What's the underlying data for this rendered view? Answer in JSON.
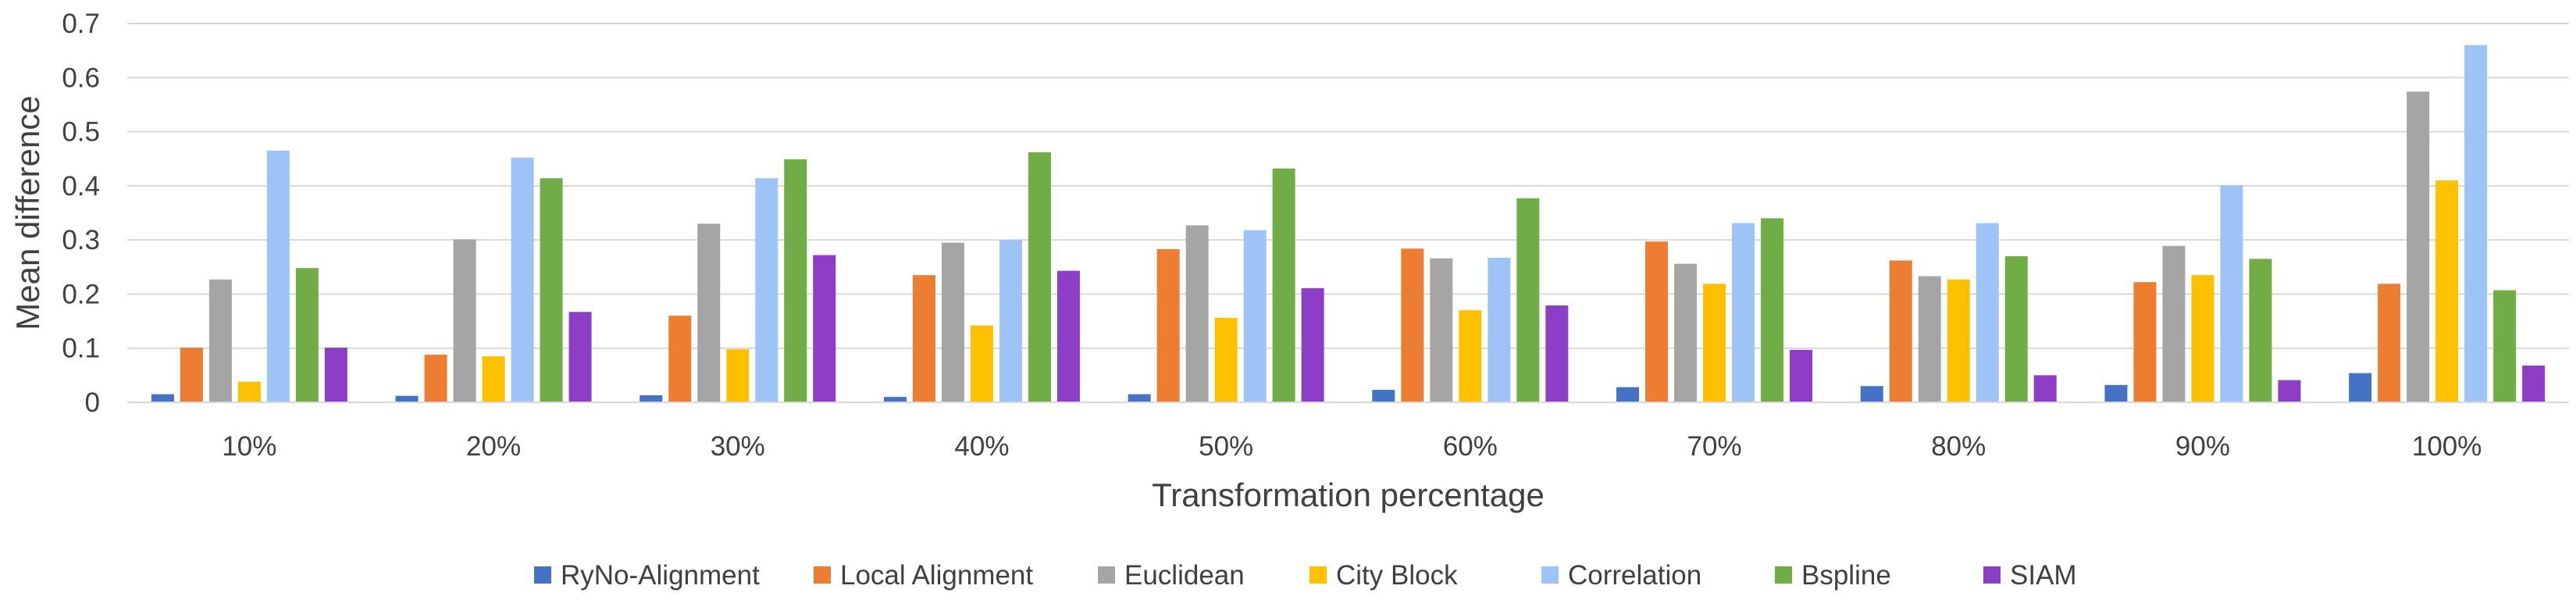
{
  "chart_data": {
    "type": "bar",
    "xlabel": "Transformation percentage",
    "ylabel": "Mean difference",
    "ylim": [
      0,
      0.7
    ],
    "yticks": [
      "0",
      "0.1",
      "0.2",
      "0.3",
      "0.4",
      "0.5",
      "0.6",
      "0.7"
    ],
    "grid": true,
    "legend_position": "bottom",
    "categories": [
      "10%",
      "20%",
      "30%",
      "40%",
      "50%",
      "60%",
      "70%",
      "80%",
      "90%",
      "100%"
    ],
    "series": [
      {
        "name": "RyNo-Alignment",
        "color": "#4472C4",
        "values": [
          0.015,
          0.012,
          0.013,
          0.01,
          0.015,
          0.023,
          0.028,
          0.03,
          0.032,
          0.054
        ]
      },
      {
        "name": "Local Alignment",
        "color": "#ED7D31",
        "values": [
          0.101,
          0.088,
          0.16,
          0.235,
          0.283,
          0.284,
          0.297,
          0.262,
          0.222,
          0.219
        ]
      },
      {
        "name": "Euclidean",
        "color": "#A5A5A5",
        "values": [
          0.227,
          0.301,
          0.33,
          0.295,
          0.327,
          0.266,
          0.256,
          0.233,
          0.289,
          0.574
        ]
      },
      {
        "name": "City Block",
        "color": "#FFC000",
        "values": [
          0.038,
          0.085,
          0.098,
          0.142,
          0.156,
          0.17,
          0.219,
          0.227,
          0.235,
          0.41
        ]
      },
      {
        "name": "Correlation",
        "color": "#9DC3F7",
        "values": [
          0.465,
          0.452,
          0.414,
          0.3,
          0.318,
          0.267,
          0.331,
          0.331,
          0.401,
          0.66
        ]
      },
      {
        "name": "Bspline",
        "color": "#70AD47",
        "values": [
          0.248,
          0.414,
          0.449,
          0.462,
          0.432,
          0.377,
          0.34,
          0.27,
          0.265,
          0.207
        ]
      },
      {
        "name": "SIAM",
        "color": "#8E3EC6",
        "values": [
          0.101,
          0.167,
          0.272,
          0.243,
          0.211,
          0.179,
          0.097,
          0.05,
          0.041,
          0.068
        ]
      }
    ]
  }
}
